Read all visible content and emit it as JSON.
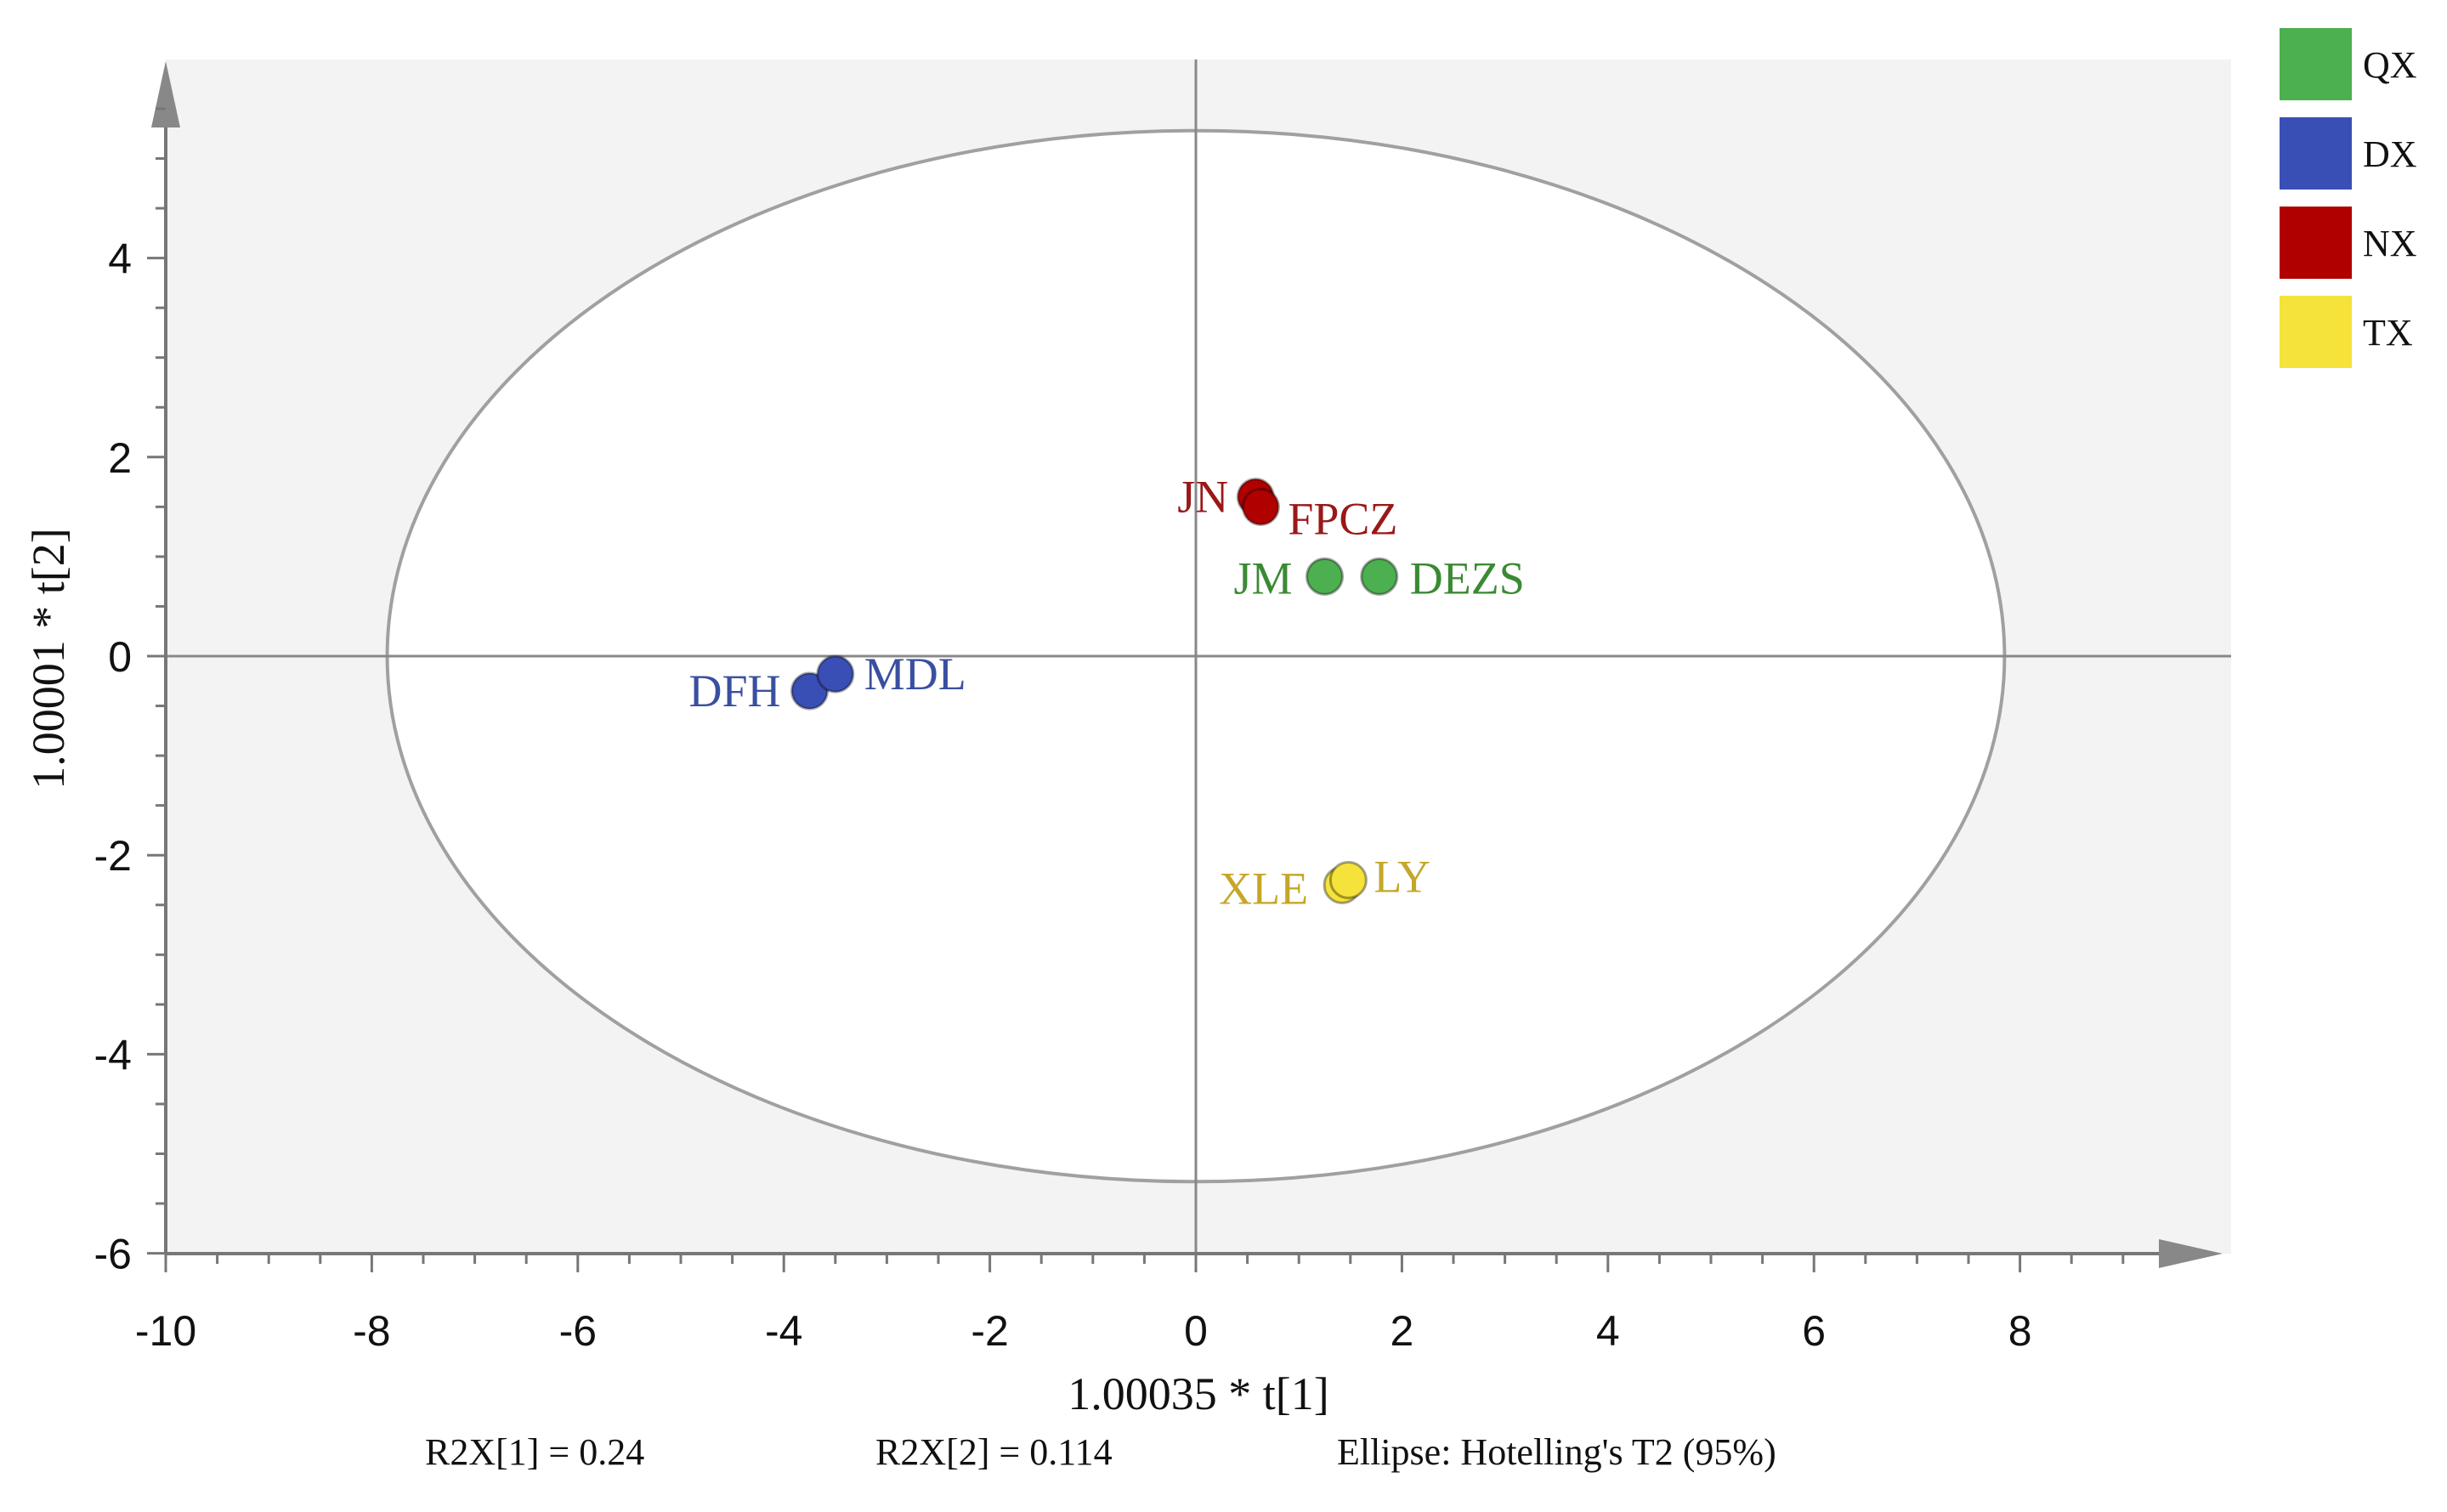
{
  "chart_data": {
    "type": "scatter",
    "title": "",
    "xlabel": "1.00035 * t[1]",
    "ylabel": "1.00001 * t[2]",
    "xlim": [
      -10,
      10
    ],
    "ylim": [
      -6,
      6
    ],
    "x_ticks": [
      -10,
      -8,
      -6,
      -4,
      -2,
      0,
      2,
      4,
      6,
      8
    ],
    "y_ticks": [
      -6,
      -4,
      -2,
      0,
      2,
      4
    ],
    "grid": false,
    "legend_position": "top-right",
    "ellipse": {
      "label": "Ellipse: Hotelling's T2 (95%)",
      "rx": 7.85,
      "ry": 5.28
    },
    "footer": {
      "r2x1": "R2X[1] = 0.24",
      "r2x2": "R2X[2] = 0.114",
      "ellipse_note": "Ellipse: Hotelling's T2 (95%)"
    },
    "series": [
      {
        "name": "QX",
        "color": "#4caf50",
        "label_color": "#3a8a34",
        "points": [
          {
            "label": "JM",
            "x": 1.25,
            "y": 0.8
          },
          {
            "label": "DEZS",
            "x": 1.78,
            "y": 0.8
          }
        ]
      },
      {
        "name": "DX",
        "color": "#3a4fb5",
        "label_color": "#3a4fa0",
        "points": [
          {
            "label": "DFH",
            "x": -3.75,
            "y": -0.35
          },
          {
            "label": "MDL",
            "x": -3.5,
            "y": -0.18
          }
        ]
      },
      {
        "name": "NX",
        "color": "#b00000",
        "label_color": "#9a1818",
        "points": [
          {
            "label": "JN",
            "x": 0.58,
            "y": 1.6
          },
          {
            "label": "FPCZ",
            "x": 0.63,
            "y": 1.5
          }
        ]
      },
      {
        "name": "TX",
        "color": "#f5e23a",
        "label_color": "#c4a72a",
        "points": [
          {
            "label": "XLE",
            "x": 1.42,
            "y": -2.3
          },
          {
            "label": "LY",
            "x": 1.48,
            "y": -2.25
          }
        ]
      }
    ]
  }
}
